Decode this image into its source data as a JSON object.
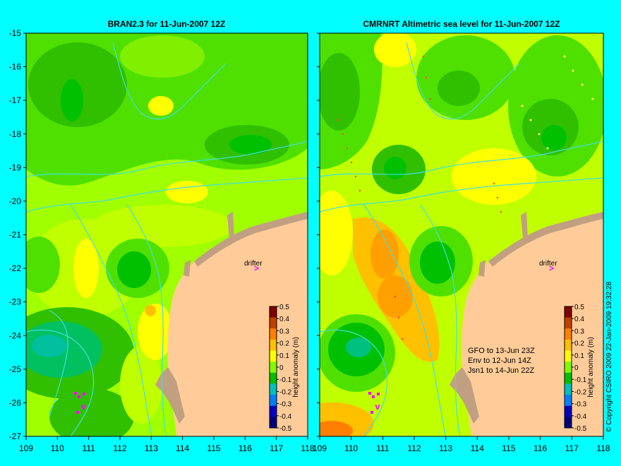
{
  "panels": [
    {
      "title": "BRAN2.3 for 11-Jun-2007 12Z",
      "drifter_label": "drifter",
      "drifter_arrow": ">",
      "track_marker": "v",
      "note_lines": []
    },
    {
      "title": "CMRNRT Altimetric sea level  for 11-Jun-2007 12Z",
      "drifter_label": "drifter",
      "drifter_arrow": ">",
      "track_marker": "v",
      "note_lines": [
        "GFO to 13-Jun 23Z",
        "Env to 12-Jun 14Z",
        "Jsn1 to 14-Jun 22Z"
      ]
    }
  ],
  "axes": {
    "y_ticks": [
      "-15",
      "-16",
      "-17",
      "-18",
      "-19",
      "-20",
      "-21",
      "-22",
      "-23",
      "-24",
      "-25",
      "-26",
      "-27"
    ],
    "x_ticks_left": [
      "109",
      "110",
      "111",
      "112",
      "113",
      "114",
      "115",
      "116",
      "117",
      "118"
    ],
    "x_ticks_right": [
      "109",
      "110",
      "111",
      "112",
      "113",
      "114",
      "115",
      "116",
      "117",
      "118"
    ]
  },
  "colorbar": {
    "label": "height anomaly (m)",
    "ticks": [
      "0.5",
      "0.4",
      "0.3",
      "0.2",
      "0.1",
      "0",
      "-0.1",
      "-0.2",
      "-0.3",
      "-0.4",
      "-0.5"
    ],
    "colors": [
      "#800000",
      "#c04000",
      "#ff8000",
      "#ffc000",
      "#ffff00",
      "#80ff00",
      "#00c000",
      "#00c0c0",
      "#0080ff",
      "#0000c0",
      "#000080"
    ]
  },
  "copyright": "© Copyright CSIRO 2009   22-Jan-2009 19:32:28",
  "colors": {
    "background": "#00ffff",
    "land": "#ffcc99",
    "reef": "#c0a080",
    "contour": "#40e0e0",
    "drifter": "#ff00ff"
  }
}
